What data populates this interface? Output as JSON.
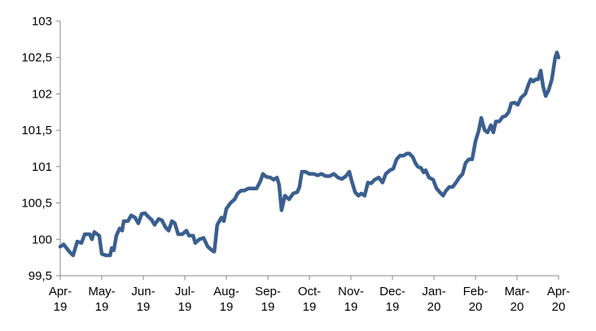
{
  "chart_data": {
    "type": "line",
    "x": [
      0,
      0.08,
      0.22,
      0.31,
      0.41,
      0.51,
      0.59,
      0.71,
      0.76,
      0.82,
      0.94,
      1.0,
      1.1,
      1.2,
      1.24,
      1.29,
      1.35,
      1.43,
      1.49,
      1.53,
      1.63,
      1.71,
      1.8,
      1.88,
      1.96,
      2.04,
      2.14,
      2.2,
      2.27,
      2.37,
      2.45,
      2.53,
      2.61,
      2.69,
      2.76,
      2.84,
      2.94,
      3.04,
      3.1,
      3.2,
      3.25,
      3.35,
      3.45,
      3.55,
      3.65,
      3.71,
      3.78,
      3.88,
      3.94,
      4.0,
      4.1,
      4.2,
      4.27,
      4.35,
      4.43,
      4.53,
      4.63,
      4.73,
      4.82,
      4.88,
      4.96,
      5.06,
      5.14,
      5.22,
      5.27,
      5.33,
      5.41,
      5.51,
      5.61,
      5.71,
      5.76,
      5.82,
      5.9,
      6.0,
      6.1,
      6.2,
      6.29,
      6.39,
      6.49,
      6.59,
      6.69,
      6.78,
      6.88,
      6.96,
      7.02,
      7.1,
      7.18,
      7.25,
      7.33,
      7.41,
      7.49,
      7.57,
      7.67,
      7.76,
      7.84,
      7.94,
      8.02,
      8.1,
      8.18,
      8.27,
      8.35,
      8.41,
      8.49,
      8.55,
      8.61,
      8.69,
      8.75,
      8.8,
      8.88,
      8.98,
      9.06,
      9.14,
      9.22,
      9.29,
      9.37,
      9.45,
      9.53,
      9.61,
      9.69,
      9.76,
      9.84,
      9.92,
      10.0,
      10.08,
      10.14,
      10.22,
      10.29,
      10.37,
      10.43,
      10.49,
      10.57,
      10.65,
      10.73,
      10.8,
      10.86,
      10.94,
      11.02,
      11.1,
      11.2,
      11.27,
      11.33,
      11.39,
      11.45,
      11.51,
      11.57,
      11.63,
      11.69,
      11.76,
      11.84,
      11.92,
      11.96,
      12.0
    ],
    "series": [
      {
        "color": "#3a5f8f",
        "values": [
          99.9,
          99.93,
          99.83,
          99.78,
          99.97,
          99.95,
          100.07,
          100.07,
          100.0,
          100.1,
          100.05,
          99.8,
          99.78,
          99.78,
          99.88,
          99.85,
          100.05,
          100.15,
          100.12,
          100.25,
          100.25,
          100.33,
          100.3,
          100.22,
          100.35,
          100.36,
          100.3,
          100.27,
          100.2,
          100.28,
          100.26,
          100.17,
          100.12,
          100.25,
          100.22,
          100.07,
          100.07,
          100.12,
          100.05,
          100.05,
          99.95,
          100.0,
          100.02,
          99.9,
          99.85,
          99.83,
          100.2,
          100.3,
          100.25,
          100.42,
          100.5,
          100.55,
          100.63,
          100.67,
          100.67,
          100.7,
          100.7,
          100.7,
          100.8,
          100.9,
          100.86,
          100.85,
          100.82,
          100.85,
          100.75,
          100.4,
          100.6,
          100.55,
          100.63,
          100.65,
          100.72,
          100.93,
          100.93,
          100.9,
          100.9,
          100.88,
          100.9,
          100.87,
          100.87,
          100.9,
          100.85,
          100.83,
          100.87,
          100.93,
          100.8,
          100.65,
          100.6,
          100.63,
          100.6,
          100.78,
          100.77,
          100.82,
          100.85,
          100.78,
          100.9,
          100.95,
          100.97,
          101.1,
          101.15,
          101.15,
          101.18,
          101.18,
          101.13,
          101.05,
          101.0,
          100.98,
          100.92,
          100.95,
          100.85,
          100.82,
          100.7,
          100.65,
          100.6,
          100.67,
          100.72,
          100.72,
          100.78,
          100.85,
          100.9,
          101.05,
          101.1,
          101.1,
          101.35,
          101.5,
          101.67,
          101.5,
          101.47,
          101.57,
          101.47,
          101.62,
          101.62,
          101.68,
          101.7,
          101.75,
          101.87,
          101.88,
          101.85,
          101.95,
          102.0,
          102.12,
          102.2,
          102.17,
          102.2,
          102.2,
          102.32,
          102.1,
          101.97,
          102.05,
          102.2,
          102.5,
          102.57,
          102.5
        ]
      }
    ],
    "xlim": [
      0,
      12
    ],
    "xticks": [
      {
        "value": 0,
        "label": "Apr-19"
      },
      {
        "value": 1,
        "label": "May-19"
      },
      {
        "value": 2,
        "label": "Jun-19"
      },
      {
        "value": 3,
        "label": "Jul-19"
      },
      {
        "value": 4,
        "label": "Aug-19"
      },
      {
        "value": 5,
        "label": "Sep-19"
      },
      {
        "value": 6,
        "label": "Oct-19"
      },
      {
        "value": 7,
        "label": "Nov-19"
      },
      {
        "value": 8,
        "label": "Dec-19"
      },
      {
        "value": 9,
        "label": "Jan-20"
      },
      {
        "value": 10,
        "label": "Feb-20"
      },
      {
        "value": 11,
        "label": "Mar-20"
      },
      {
        "value": 12,
        "label": "Apr-20"
      }
    ],
    "ylim": [
      99.5,
      103
    ],
    "yticks": [
      {
        "value": 99.5,
        "label": "99,5"
      },
      100,
      {
        "value": 100.5,
        "label": "100,5"
      },
      101,
      {
        "value": 101.5,
        "label": "101,5"
      },
      102,
      {
        "value": 102.5,
        "label": "102,5"
      },
      103
    ],
    "grid": false
  }
}
